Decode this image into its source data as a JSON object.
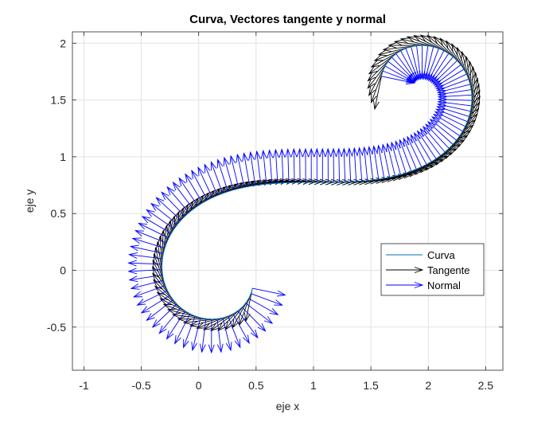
{
  "chart_data": {
    "type": "line",
    "title": "Curva, Vectores tangente y normal",
    "xlabel": "eje x",
    "ylabel": "eje y",
    "xlim": [
      -1.1,
      2.65
    ],
    "ylim": [
      -0.88,
      2.1
    ],
    "xticks": [
      -1,
      -0.5,
      0,
      0.5,
      1,
      1.5,
      2,
      2.5
    ],
    "xtick_labels": [
      "-1",
      "-0.5",
      "0",
      "0.5",
      "1",
      "1.5",
      "2",
      "2.5"
    ],
    "yticks": [
      -0.5,
      0,
      0.5,
      1,
      1.5,
      2
    ],
    "ytick_labels": [
      "-0.5",
      "0",
      "0.5",
      "1",
      "1.5",
      "2"
    ],
    "grid": true,
    "legend_position": "lower-right",
    "curve": {
      "kind": "euler-spiral",
      "t_range": [
        -3.0,
        3.0
      ],
      "center": [
        0.0,
        0.0
      ],
      "scale": 1.0
    },
    "series": [
      {
        "name": "Curva",
        "color": "#0072BD",
        "style": "line"
      },
      {
        "name": "Tangente",
        "color": "#000000",
        "style": "arrow"
      },
      {
        "name": "Normal",
        "color": "#0000FF",
        "style": "arrow"
      }
    ],
    "vectors": {
      "count": 121,
      "length": 0.2,
      "tip_size": 0.06
    }
  },
  "colors": {
    "curve": "#0072BD",
    "tangent": "#000000",
    "normal": "#0000FF",
    "grid": "#e3e3e3",
    "axis": "#262626"
  }
}
